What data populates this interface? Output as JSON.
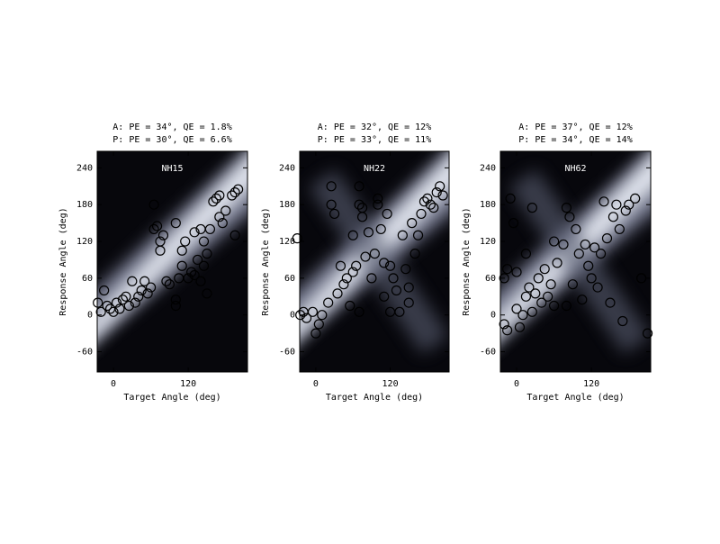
{
  "chart_data": [
    {
      "type": "scatter",
      "title": "A: PE = 34°, QE = 1.8%",
      "subtitle": "P: PE = 30°, QE = 6.6%",
      "annotation": "NH15",
      "x_label": "Target Angle (deg)",
      "y_label": "Response Angle (deg)",
      "xlim": [
        -26,
        215
      ],
      "ylim": [
        -93,
        267
      ],
      "xticks": [
        0,
        120
      ],
      "yticks": [
        -60,
        0,
        60,
        120,
        180,
        240
      ],
      "marker_color": "#000000",
      "x": [
        -20,
        -15,
        -10,
        -5,
        0,
        5,
        10,
        15,
        20,
        25,
        30,
        35,
        40,
        45,
        50,
        55,
        60,
        65,
        65,
        70,
        75,
        75,
        80,
        85,
        90,
        100,
        100,
        105,
        110,
        110,
        115,
        120,
        125,
        130,
        135,
        140,
        145,
        150,
        150,
        155,
        160,
        165,
        170,
        175,
        180,
        190,
        195,
        200,
        195,
        170,
        100,
        -25,
        130,
        140,
        145
      ],
      "values": [
        5,
        40,
        15,
        10,
        5,
        20,
        10,
        25,
        30,
        15,
        55,
        20,
        30,
        40,
        55,
        35,
        45,
        180,
        140,
        145,
        120,
        105,
        130,
        55,
        50,
        25,
        150,
        60,
        80,
        105,
        120,
        60,
        70,
        135,
        90,
        55,
        120,
        35,
        100,
        140,
        185,
        190,
        160,
        150,
        170,
        195,
        200,
        205,
        130,
        195,
        15,
        20,
        65,
        140,
        80
      ]
    },
    {
      "type": "scatter",
      "title": "A: PE = 32°, QE = 12%",
      "subtitle": "P: PE = 33°, QE = 11%",
      "annotation": "NH22",
      "x_label": "Target Angle (deg)",
      "y_label": "Response Angle (deg)",
      "xlim": [
        -26,
        215
      ],
      "ylim": [
        -93,
        267
      ],
      "xticks": [
        0,
        120
      ],
      "yticks": [
        -60,
        0,
        60,
        120,
        180,
        240
      ],
      "marker_color": "#000000",
      "x": [
        -30,
        -25,
        -20,
        -15,
        -5,
        0,
        5,
        10,
        20,
        25,
        25,
        30,
        35,
        40,
        45,
        50,
        55,
        60,
        65,
        70,
        70,
        75,
        75,
        80,
        85,
        90,
        95,
        100,
        100,
        105,
        110,
        110,
        115,
        120,
        120,
        125,
        130,
        135,
        140,
        145,
        150,
        150,
        155,
        160,
        165,
        170,
        175,
        180,
        185,
        190,
        195,
        200,
        205,
        70,
        60
      ],
      "values": [
        125,
        0,
        5,
        -5,
        5,
        -30,
        -15,
        0,
        20,
        210,
        180,
        165,
        35,
        80,
        50,
        60,
        15,
        70,
        80,
        210,
        180,
        175,
        160,
        95,
        135,
        60,
        100,
        190,
        180,
        140,
        85,
        30,
        165,
        5,
        80,
        60,
        40,
        5,
        130,
        75,
        45,
        20,
        150,
        100,
        130,
        165,
        185,
        190,
        180,
        175,
        200,
        210,
        195,
        5,
        130
      ]
    },
    {
      "type": "scatter",
      "title": "A: PE = 37°, QE = 12%",
      "subtitle": "P: PE = 34°, QE = 14%",
      "annotation": "NH62",
      "x_label": "Target Angle (deg)",
      "y_label": "Response Angle (deg)",
      "xlim": [
        -26,
        215
      ],
      "ylim": [
        -93,
        267
      ],
      "xticks": [
        0,
        120
      ],
      "yticks": [
        -60,
        0,
        60,
        120,
        180,
        240
      ],
      "marker_color": "#000000",
      "x": [
        -20,
        -15,
        -10,
        -5,
        0,
        0,
        5,
        10,
        15,
        20,
        25,
        25,
        30,
        35,
        40,
        45,
        50,
        55,
        60,
        60,
        65,
        75,
        80,
        80,
        85,
        90,
        95,
        100,
        105,
        110,
        115,
        120,
        125,
        130,
        135,
        140,
        145,
        150,
        155,
        160,
        165,
        170,
        175,
        180,
        190,
        200,
        210,
        -20,
        -15,
        15
      ],
      "values": [
        60,
        75,
        190,
        150,
        10,
        70,
        -20,
        0,
        30,
        45,
        175,
        5,
        35,
        60,
        20,
        75,
        30,
        50,
        120,
        15,
        85,
        115,
        15,
        175,
        160,
        50,
        140,
        100,
        25,
        115,
        80,
        60,
        110,
        45,
        100,
        185,
        125,
        20,
        160,
        180,
        140,
        -10,
        170,
        180,
        190,
        60,
        -30,
        -15,
        -25,
        100
      ]
    }
  ]
}
